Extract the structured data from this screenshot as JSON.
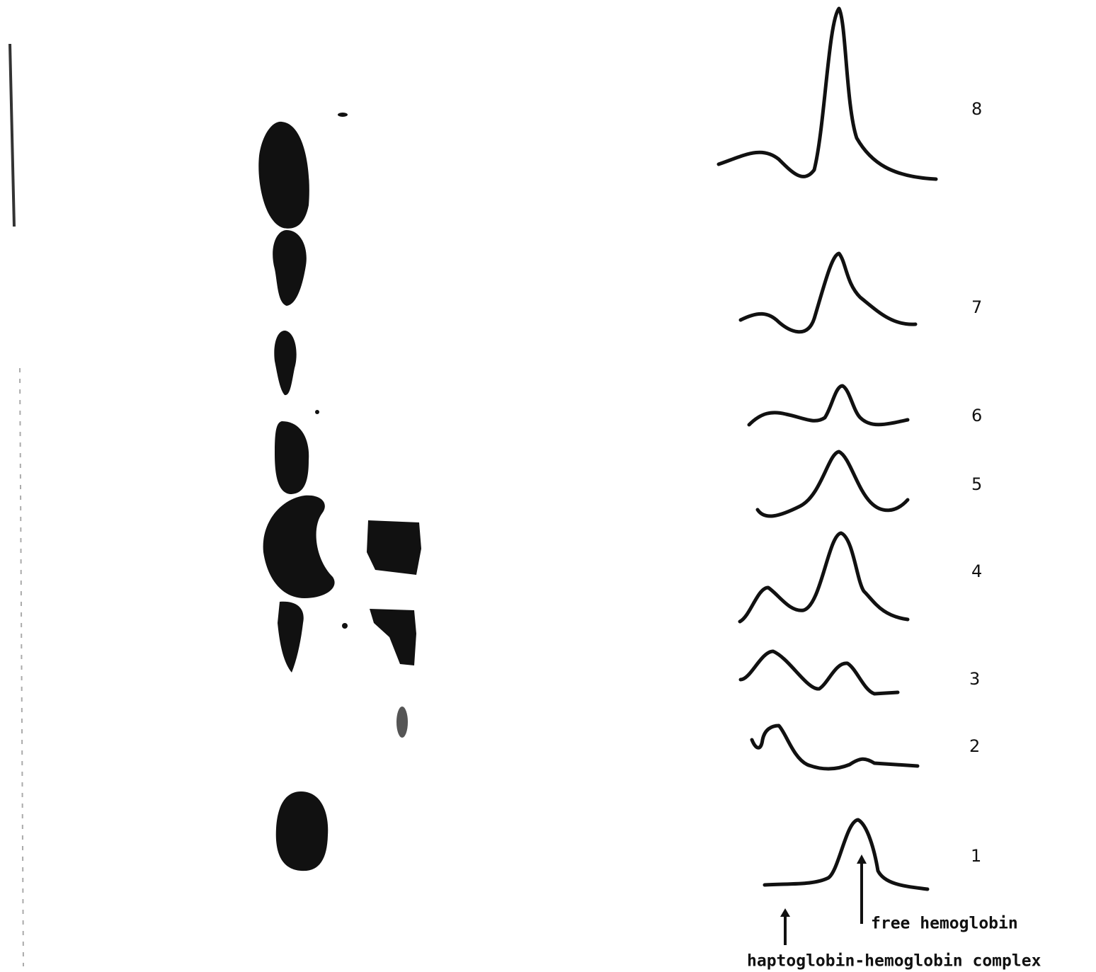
{
  "traces": [
    {
      "label": "8"
    },
    {
      "label": "7"
    },
    {
      "label": "6"
    },
    {
      "label": "5"
    },
    {
      "label": "4"
    },
    {
      "label": "3"
    },
    {
      "label": "2"
    },
    {
      "label": "1"
    }
  ],
  "annotations": {
    "free": "free hemoglobin",
    "complex": "haptoglobin-hemoglobin complex"
  }
}
